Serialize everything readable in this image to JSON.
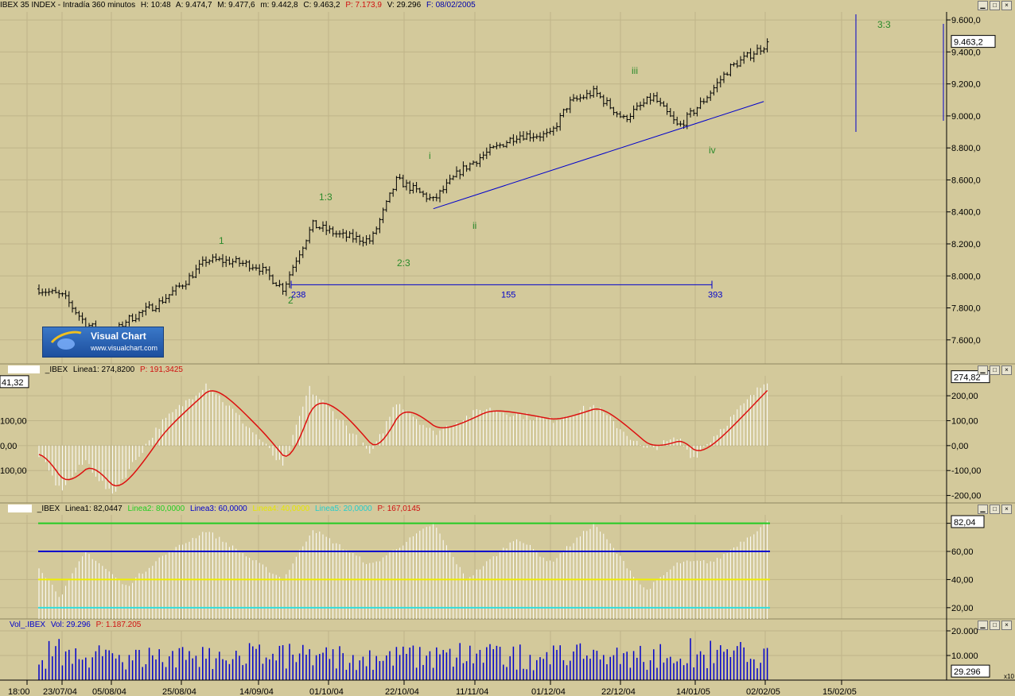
{
  "price_pane": {
    "header": {
      "symbol": "IBEX 35 INDEX - Intradía 360 minutos",
      "H": "H: 10:48",
      "A": "A: 9.474,7",
      "M": "M: 9.477,6",
      "m": "m: 9.442,8",
      "C": "C: 9.463,2",
      "P": "P: 7.173,9",
      "V": "V: 29.296",
      "F": "F: 08/02/2005"
    },
    "last_value": "9.463,2",
    "y_ticks": [
      "9.600,0",
      "9.400,0",
      "9.200,0",
      "9.000,0",
      "8.800,0",
      "8.600,0",
      "8.400,0",
      "8.200,0",
      "8.000,0",
      "7.800,0",
      "7.600,0"
    ],
    "wave_labels": [
      "1",
      "2",
      "1:3",
      "2:3",
      "i",
      "ii",
      "iii",
      "iv",
      "3:3"
    ],
    "measure_labels": [
      "238",
      "155",
      "393"
    ],
    "logo_title": "Visual Chart",
    "logo_url": "www.visualchart.com"
  },
  "osc1_pane": {
    "header": {
      "name": "_IBEX",
      "l1": "Linea1: 274,8200",
      "p": "P: 191,3425"
    },
    "last_value": "274,82",
    "left_value": "41,32",
    "y_ticks": [
      "200,00",
      "100,00",
      "0,00",
      "-100,00",
      "-200,00"
    ],
    "left_ticks": [
      "100,00",
      "0,00",
      "100,00"
    ]
  },
  "osc2_pane": {
    "header": {
      "name": "_IBEX",
      "l1": "Linea1: 82,0447",
      "l2": "Linea2: 80,0000",
      "l3": "Linea3: 60,0000",
      "l4": "Linea4: 40,0000",
      "l5": "Linea5: 20,0000",
      "p": "P: 167,0145"
    },
    "last_value": "82,04",
    "y_ticks": [
      "80,00",
      "60,00",
      "40,00",
      "20,00"
    ]
  },
  "vol_pane": {
    "header": {
      "name": "Vol_.IBEX",
      "vol": "Vol: 29.296",
      "p": "P: 1.187.205"
    },
    "last_value": "29.296",
    "y_ticks": [
      "20.000",
      "10.000"
    ],
    "scale_note": "x10"
  },
  "x_axis": {
    "labels": [
      "18:00",
      "23/07/04",
      "05/08/04",
      "25/08/04",
      "14/09/04",
      "01/10/04",
      "22/10/04",
      "11/11/04",
      "01/12/04",
      "22/12/04",
      "14/01/05",
      "02/02/05",
      "15/02/05"
    ]
  },
  "colors": {
    "background": "#d3c99b",
    "grid": "#bfb489",
    "price_bars": "#000000",
    "trendline": "#0000cc",
    "wave_label": "#2a8a2a",
    "osc_red": "#dd1010",
    "osc_bars": "#ffffff",
    "line80": "#22cc22",
    "line60": "#0000cc",
    "line40": "#eeee00",
    "line20": "#33dddd",
    "volume": "#0000cc"
  },
  "chart_data": [
    {
      "type": "ohlc",
      "title": "IBEX 35 INDEX - Intradía 360 minutos",
      "x_range": [
        "23/07/04",
        "08/02/05"
      ],
      "ylim": [
        7450,
        9650
      ],
      "close_anchors": [
        {
          "date": "23/07/04",
          "close": 7920
        },
        {
          "date": "30/07/04",
          "close": 7870
        },
        {
          "date": "05/08/04",
          "close": 7700
        },
        {
          "date": "12/08/04",
          "close": 7620
        },
        {
          "date": "16/08/04",
          "close": 7720
        },
        {
          "date": "25/08/04",
          "close": 7830
        },
        {
          "date": "01/09/04",
          "close": 7960
        },
        {
          "date": "07/09/04",
          "close": 8100
        },
        {
          "date": "14/09/04",
          "close": 8090
        },
        {
          "date": "21/09/04",
          "close": 8060
        },
        {
          "date": "28/09/04",
          "close": 7920
        },
        {
          "date": "01/10/04",
          "close": 8080
        },
        {
          "date": "06/10/04",
          "close": 8320
        },
        {
          "date": "14/10/04",
          "close": 8250
        },
        {
          "date": "22/10/04",
          "close": 8220
        },
        {
          "date": "29/10/04",
          "close": 8600
        },
        {
          "date": "08/11/04",
          "close": 8470
        },
        {
          "date": "15/11/04",
          "close": 8650
        },
        {
          "date": "22/11/04",
          "close": 8760
        },
        {
          "date": "01/12/04",
          "close": 8880
        },
        {
          "date": "10/12/04",
          "close": 8880
        },
        {
          "date": "15/12/04",
          "close": 9080
        },
        {
          "date": "22/12/04",
          "close": 9150
        },
        {
          "date": "30/12/04",
          "close": 8980
        },
        {
          "date": "07/01/05",
          "close": 9120
        },
        {
          "date": "14/01/05",
          "close": 8930
        },
        {
          "date": "21/01/05",
          "close": 9100
        },
        {
          "date": "28/01/05",
          "close": 9300
        },
        {
          "date": "08/02/05",
          "close": 9463
        }
      ],
      "trendline": [
        {
          "date": "08/11/04",
          "value": 8420
        },
        {
          "date": "15/02/05",
          "value": 9090
        }
      ]
    },
    {
      "type": "bar+line",
      "name": "Linea1 oscillator",
      "ylim": [
        -230,
        280
      ],
      "anchors": [
        {
          "date": "23/07/04",
          "value": -30
        },
        {
          "date": "29/07/04",
          "value": -180
        },
        {
          "date": "05/08/04",
          "value": -60
        },
        {
          "date": "12/08/04",
          "value": -200
        },
        {
          "date": "25/08/04",
          "value": 80
        },
        {
          "date": "07/09/04",
          "value": 250
        },
        {
          "date": "22/09/04",
          "value": 20
        },
        {
          "date": "28/09/04",
          "value": -90
        },
        {
          "date": "05/10/04",
          "value": 230
        },
        {
          "date": "14/10/04",
          "value": 100
        },
        {
          "date": "22/10/04",
          "value": -40
        },
        {
          "date": "29/10/04",
          "value": 180
        },
        {
          "date": "08/11/04",
          "value": 50
        },
        {
          "date": "22/11/04",
          "value": 150
        },
        {
          "date": "10/12/04",
          "value": 100
        },
        {
          "date": "22/12/04",
          "value": 160
        },
        {
          "date": "05/01/05",
          "value": -20
        },
        {
          "date": "14/01/05",
          "value": 30
        },
        {
          "date": "18/01/05",
          "value": -50
        },
        {
          "date": "08/02/05",
          "value": 274.82
        }
      ]
    },
    {
      "type": "bar",
      "name": "Linea1",
      "ylim": [
        12,
        86
      ],
      "reference_lines": [
        80,
        60,
        40,
        20
      ],
      "anchors": [
        {
          "date": "23/07/04",
          "value": 50
        },
        {
          "date": "29/07/04",
          "value": 28
        },
        {
          "date": "05/08/04",
          "value": 60
        },
        {
          "date": "16/08/04",
          "value": 35
        },
        {
          "date": "25/08/04",
          "value": 55
        },
        {
          "date": "07/09/04",
          "value": 75
        },
        {
          "date": "28/09/04",
          "value": 40
        },
        {
          "date": "06/10/04",
          "value": 76
        },
        {
          "date": "22/10/04",
          "value": 50
        },
        {
          "date": "08/11/04",
          "value": 80
        },
        {
          "date": "17/11/04",
          "value": 40
        },
        {
          "date": "01/12/04",
          "value": 70
        },
        {
          "date": "10/12/04",
          "value": 52
        },
        {
          "date": "22/12/04",
          "value": 80
        },
        {
          "date": "05/01/05",
          "value": 32
        },
        {
          "date": "14/01/05",
          "value": 52
        },
        {
          "date": "24/01/05",
          "value": 53
        },
        {
          "date": "08/02/05",
          "value": 82.04
        }
      ]
    },
    {
      "type": "bar",
      "name": "Vol_.IBEX",
      "ylim": [
        0,
        20000
      ],
      "typical_range": [
        4000,
        17000
      ],
      "last": 29296
    }
  ]
}
